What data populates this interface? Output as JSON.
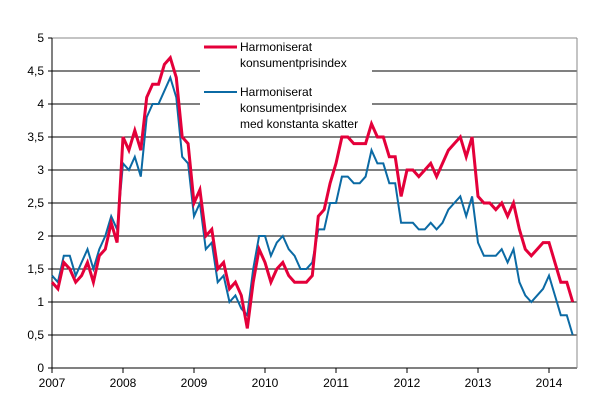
{
  "chart_data": {
    "type": "line",
    "title": "",
    "xlabel": "",
    "ylabel": "",
    "ylim": [
      0,
      5
    ],
    "yticks": [
      "0",
      "0,5",
      "1",
      "1,5",
      "2",
      "2,5",
      "3",
      "3,5",
      "4",
      "4,5",
      "5"
    ],
    "xticks": [
      "2007",
      "2008",
      "2009",
      "2010",
      "2011",
      "2012",
      "2013",
      "2014"
    ],
    "x_start": "2007-01",
    "x_frequency": "monthly",
    "grid": true,
    "legend_position": "top-center",
    "series": [
      {
        "name": "Harmoniserat konsumentprisindex",
        "color": "#e4003a",
        "values": [
          1.3,
          1.2,
          1.6,
          1.5,
          1.3,
          1.4,
          1.6,
          1.3,
          1.7,
          1.8,
          2.2,
          1.9,
          3.5,
          3.3,
          3.6,
          3.3,
          4.1,
          4.3,
          4.3,
          4.6,
          4.7,
          4.4,
          3.5,
          3.4,
          2.5,
          2.7,
          2.0,
          2.1,
          1.5,
          1.6,
          1.2,
          1.3,
          1.1,
          0.6,
          1.3,
          1.8,
          1.6,
          1.3,
          1.5,
          1.6,
          1.4,
          1.3,
          1.3,
          1.3,
          1.4,
          2.3,
          2.4,
          2.8,
          3.1,
          3.5,
          3.5,
          3.4,
          3.4,
          3.4,
          3.7,
          3.5,
          3.5,
          3.2,
          3.2,
          2.6,
          3.0,
          3.0,
          2.9,
          3.0,
          3.1,
          2.9,
          3.1,
          3.3,
          3.4,
          3.5,
          3.2,
          3.5,
          2.6,
          2.5,
          2.5,
          2.4,
          2.5,
          2.3,
          2.5,
          2.1,
          1.8,
          1.7,
          1.8,
          1.9,
          1.9,
          1.6,
          1.3,
          1.3,
          1.0
        ]
      },
      {
        "name": "Harmoniserat konsumentprisindex med konstanta skatter",
        "legend_lines": [
          "Harmoniserat",
          "konsumentprisindex",
          "med konstanta skatter"
        ],
        "color": "#0b6aa4",
        "values": [
          1.4,
          1.3,
          1.7,
          1.7,
          1.4,
          1.6,
          1.8,
          1.5,
          1.8,
          2.0,
          2.3,
          2.1,
          3.1,
          3.0,
          3.2,
          2.9,
          3.8,
          4.0,
          4.0,
          4.2,
          4.4,
          4.1,
          3.2,
          3.1,
          2.3,
          2.5,
          1.8,
          1.9,
          1.3,
          1.4,
          1.0,
          1.1,
          0.9,
          0.8,
          1.5,
          2.0,
          2.0,
          1.7,
          1.9,
          2.0,
          1.8,
          1.7,
          1.5,
          1.5,
          1.6,
          2.1,
          2.1,
          2.5,
          2.5,
          2.9,
          2.9,
          2.8,
          2.8,
          2.9,
          3.3,
          3.1,
          3.1,
          2.8,
          2.8,
          2.2,
          2.2,
          2.2,
          2.1,
          2.1,
          2.2,
          2.1,
          2.2,
          2.4,
          2.5,
          2.6,
          2.3,
          2.6,
          1.9,
          1.7,
          1.7,
          1.7,
          1.8,
          1.6,
          1.8,
          1.3,
          1.1,
          1.0,
          1.1,
          1.2,
          1.4,
          1.1,
          0.8,
          0.8,
          0.5
        ]
      }
    ],
    "legend": {
      "series1_lines": [
        "Harmoniserat",
        "konsumentprisindex"
      ],
      "series2_lines": [
        "Harmoniserat",
        "konsumentprisindex",
        "med konstanta skatter"
      ]
    }
  }
}
